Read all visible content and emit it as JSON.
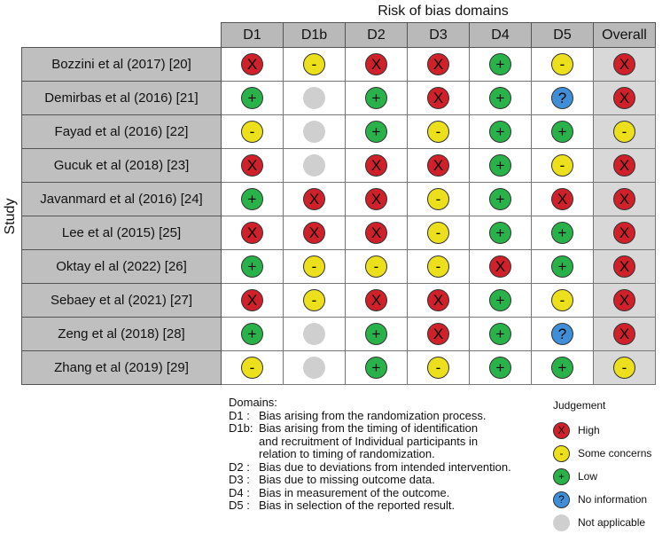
{
  "title": "Risk of bias domains",
  "y_axis_label": "Study",
  "columns": [
    "D1",
    "D1b",
    "D2",
    "D3",
    "D4",
    "D5",
    "Overall"
  ],
  "symbols": {
    "high": "X",
    "some": "-",
    "low": "+",
    "noinfo": "?",
    "na": ""
  },
  "colors": {
    "high": "#d0202a",
    "some": "#ecdf1c",
    "low": "#2ab24a",
    "noinfo": "#3f8fd8",
    "na": "#cfcfcf"
  },
  "rows": [
    {
      "study": "Bozzini et al (2017) [20]",
      "judgements": [
        "high",
        "some",
        "high",
        "high",
        "low",
        "some",
        "high"
      ]
    },
    {
      "study": "Demirbas et al (2016) [21]",
      "judgements": [
        "low",
        "na",
        "low",
        "high",
        "low",
        "noinfo",
        "high"
      ]
    },
    {
      "study": "Fayad et al (2016) [22]",
      "judgements": [
        "some",
        "na",
        "low",
        "some",
        "low",
        "low",
        "some"
      ]
    },
    {
      "study": "Gucuk et al (2018) [23]",
      "judgements": [
        "high",
        "na",
        "high",
        "high",
        "low",
        "some",
        "high"
      ]
    },
    {
      "study": "Javanmard et al (2016) [24]",
      "judgements": [
        "low",
        "high",
        "high",
        "some",
        "low",
        "high",
        "high"
      ]
    },
    {
      "study": "Lee et al (2015) [25]",
      "judgements": [
        "high",
        "high",
        "high",
        "some",
        "low",
        "low",
        "high"
      ]
    },
    {
      "study": "Oktay el al (2022) [26]",
      "judgements": [
        "low",
        "some",
        "some",
        "some",
        "high",
        "low",
        "high"
      ]
    },
    {
      "study": "Sebaey et al (2021) [27]",
      "judgements": [
        "high",
        "some",
        "high",
        "high",
        "low",
        "some",
        "high"
      ]
    },
    {
      "study": "Zeng et al (2018) [28]",
      "judgements": [
        "low",
        "na",
        "low",
        "high",
        "low",
        "noinfo",
        "high"
      ]
    },
    {
      "study": "Zhang et al (2019) [29]",
      "judgements": [
        "some",
        "na",
        "low",
        "some",
        "low",
        "low",
        "some"
      ]
    }
  ],
  "domains_title": "Domains:",
  "domains": [
    {
      "code": "D1 :",
      "desc": "Bias arising from the randomization process."
    },
    {
      "code": "D1b:",
      "desc": "Bias arising from the timing of identification"
    },
    {
      "code": "",
      "desc": "and recruitment of Individual participants in"
    },
    {
      "code": "",
      "desc": "relation to timing of randomization."
    },
    {
      "code": "D2 :",
      "desc": "Bias due to deviations from intended intervention."
    },
    {
      "code": "D3 :",
      "desc": "Bias due to missing outcome data."
    },
    {
      "code": "D4 :",
      "desc": "Bias in measurement of the outcome."
    },
    {
      "code": "D5 :",
      "desc": "Bias in selection of the reported result."
    }
  ],
  "legend": {
    "title": "Judgement",
    "items": [
      {
        "key": "high",
        "label": "High"
      },
      {
        "key": "some",
        "label": "Some concerns"
      },
      {
        "key": "low",
        "label": "Low"
      },
      {
        "key": "noinfo",
        "label": "No information"
      },
      {
        "key": "na",
        "label": "Not applicable"
      }
    ]
  }
}
